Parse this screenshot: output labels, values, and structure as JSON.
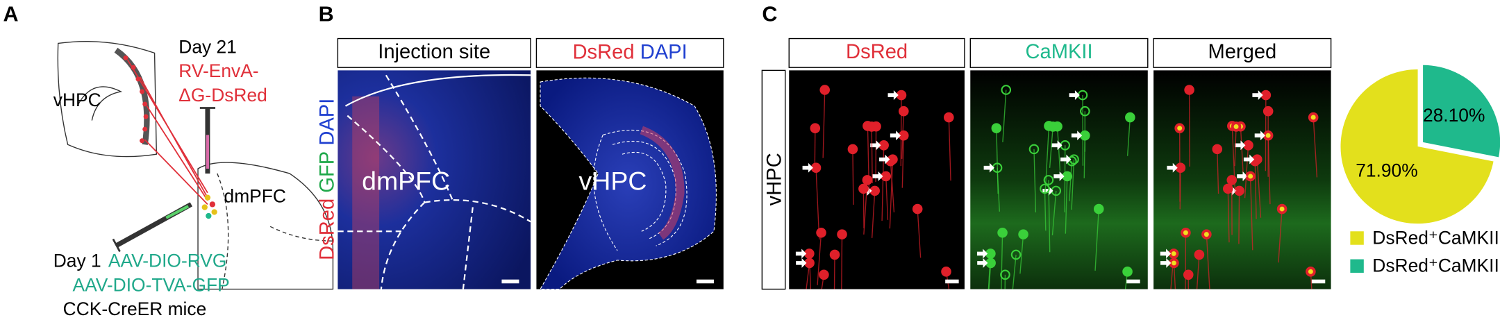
{
  "panel_a": {
    "label": "A",
    "day21": "Day 21",
    "virus_rv": [
      "RV-EnvA-",
      "ΔG-DsRed"
    ],
    "region_vhpc": "vHPC",
    "region_dmpfc": "dmPFC",
    "day1": "Day 1",
    "virus_aav": [
      "AAV-DIO-RVG",
      "AAV-DIO-TVA-GFP"
    ],
    "mice": "CCK-CreER mice"
  },
  "panel_b": {
    "label": "B",
    "header_injection": "Injection site",
    "header_stain": [
      "DsRed",
      "DAPI"
    ],
    "side_stain": [
      "DsRed",
      "GFP",
      "DAPI"
    ],
    "image_labels": [
      "dmPFC",
      "vHPC"
    ]
  },
  "panel_c": {
    "label": "C",
    "headers": [
      "DsRed",
      "CaMKII",
      "Merged"
    ],
    "side": "vHPC"
  },
  "chart_data": {
    "type": "pie",
    "categories": [
      "DsRed⁺CaMKII⁺",
      "DsRed⁺CaMKII⁻"
    ],
    "values": [
      71.9,
      28.1
    ],
    "value_labels": [
      "71.90%",
      "28.10%"
    ],
    "colors": [
      "#e3e01c",
      "#1fb98c"
    ],
    "exploded": [
      false,
      true
    ]
  }
}
